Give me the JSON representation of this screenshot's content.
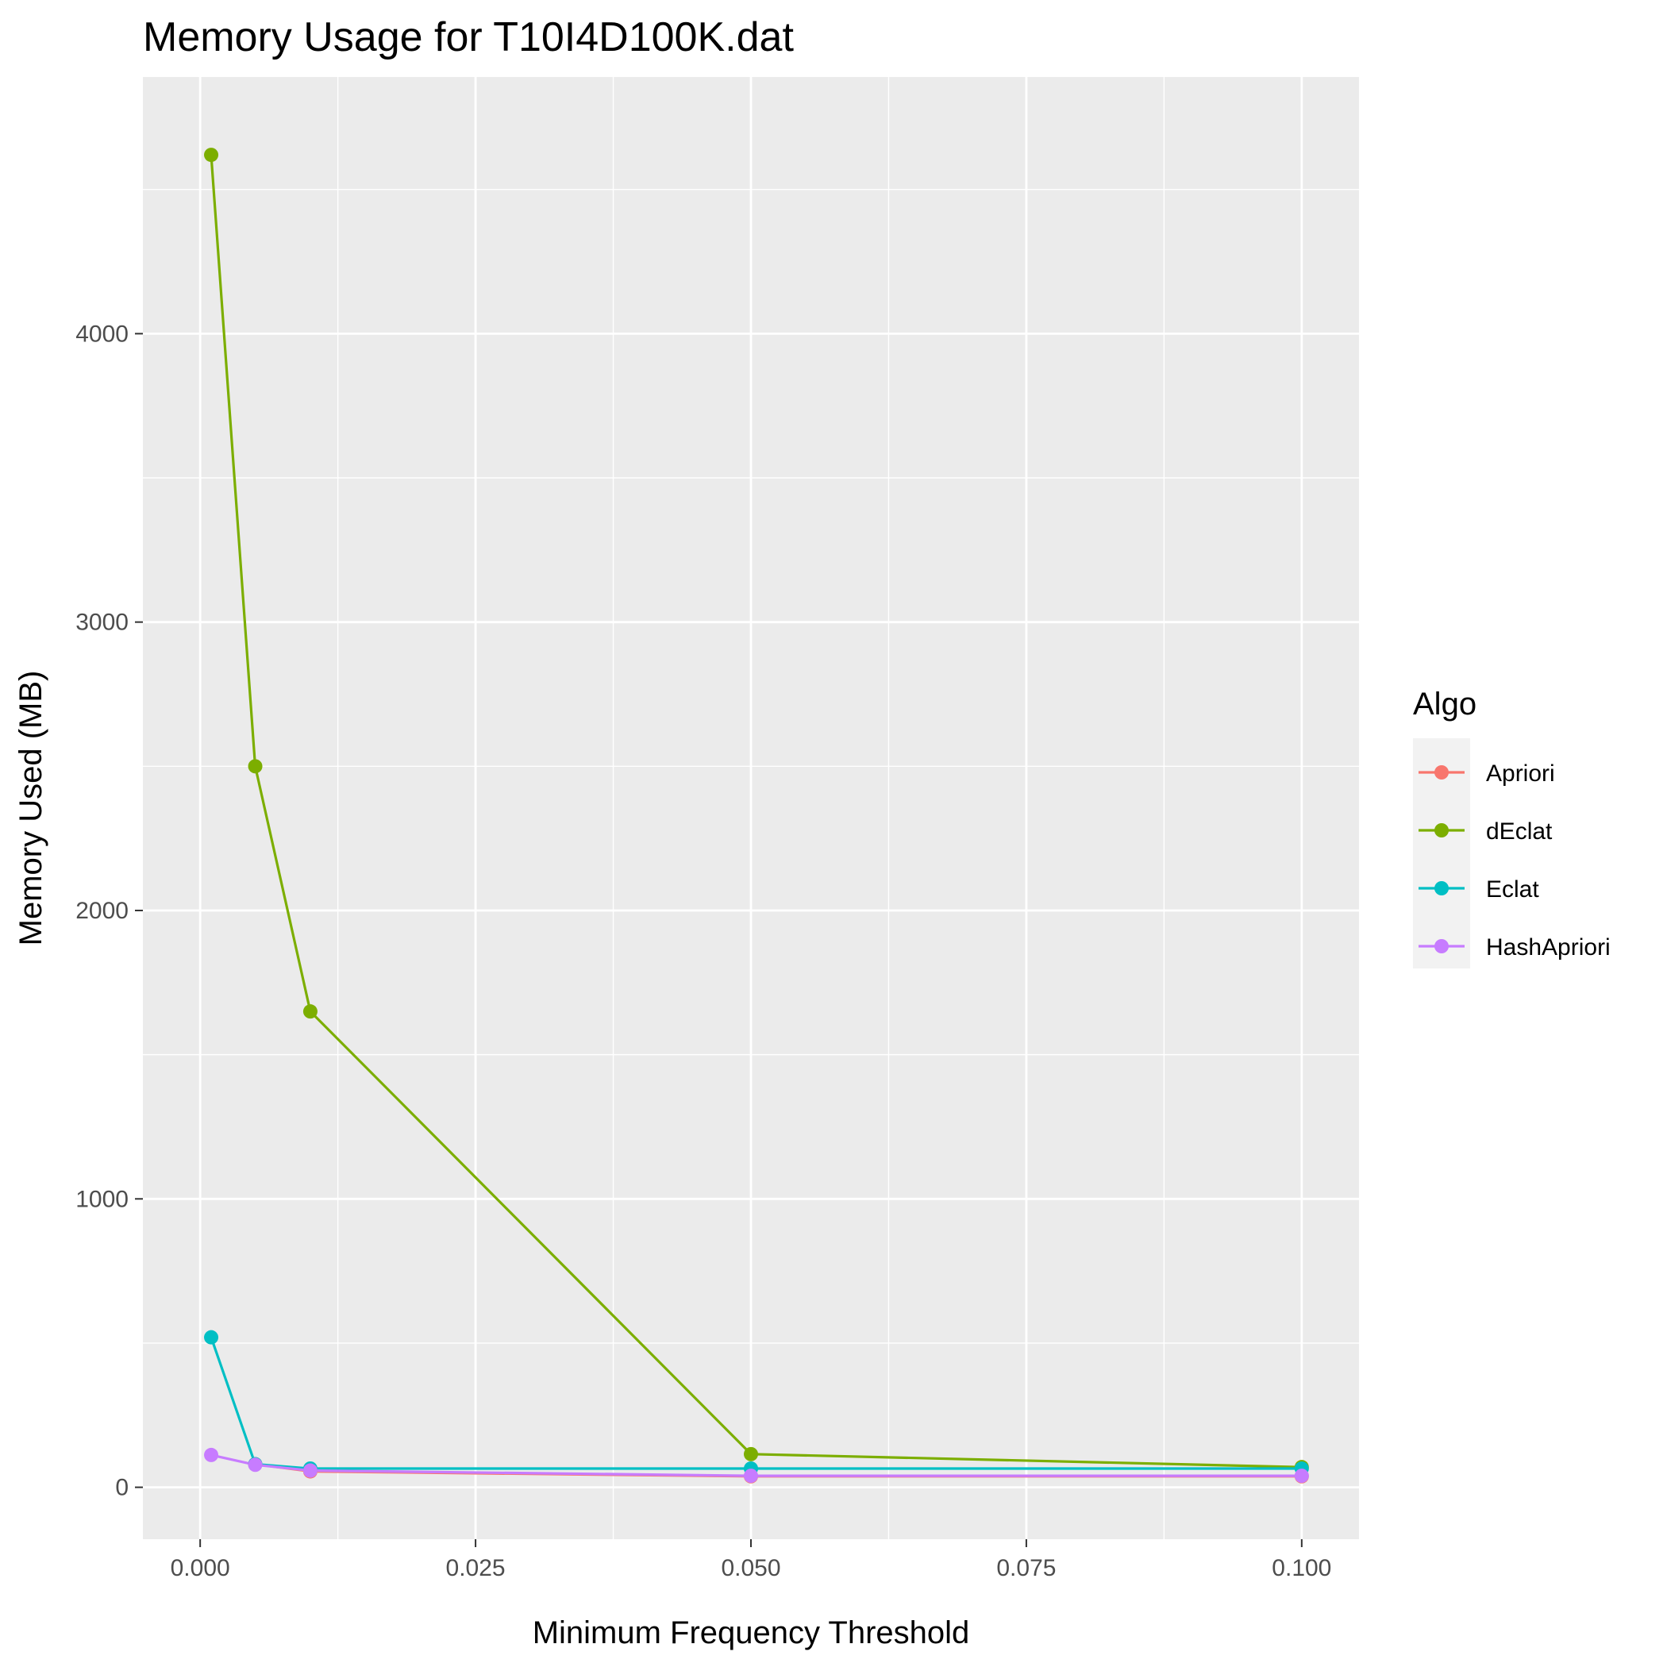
{
  "chart_data": {
    "type": "line",
    "title": "Memory Usage for T10I4D100K.dat",
    "xlabel": "Minimum Frequency Threshold",
    "ylabel": "Memory Used (MB)",
    "xlim": [
      -0.0052,
      0.1052
    ],
    "ylim": [
      -180,
      4890
    ],
    "x_ticks": [
      0.0,
      0.025,
      0.05,
      0.075,
      0.1
    ],
    "x_tick_labels": [
      "0.000",
      "0.025",
      "0.050",
      "0.075",
      "0.100"
    ],
    "y_ticks": [
      0,
      1000,
      2000,
      3000,
      4000
    ],
    "y_tick_labels": [
      "0",
      "1000",
      "2000",
      "3000",
      "4000"
    ],
    "grid": true,
    "legend": {
      "title": "Algo",
      "position": "right"
    },
    "series": [
      {
        "name": "Apriori",
        "color": "#F8766D",
        "x": [
          0.005,
          0.01,
          0.05,
          0.1
        ],
        "y": [
          80,
          55,
          38,
          38
        ]
      },
      {
        "name": "dEclat",
        "color": "#7CAE00",
        "x": [
          0.001,
          0.005,
          0.01,
          0.05,
          0.1
        ],
        "y": [
          4620,
          2500,
          1650,
          115,
          70
        ]
      },
      {
        "name": "Eclat",
        "color": "#00BFC4",
        "x": [
          0.001,
          0.005,
          0.01,
          0.05,
          0.1
        ],
        "y": [
          520,
          80,
          65,
          65,
          65
        ]
      },
      {
        "name": "HashApriori",
        "color": "#C77CFF",
        "x": [
          0.001,
          0.005,
          0.01,
          0.05,
          0.1
        ],
        "y": [
          112,
          78,
          58,
          40,
          40
        ]
      }
    ]
  }
}
